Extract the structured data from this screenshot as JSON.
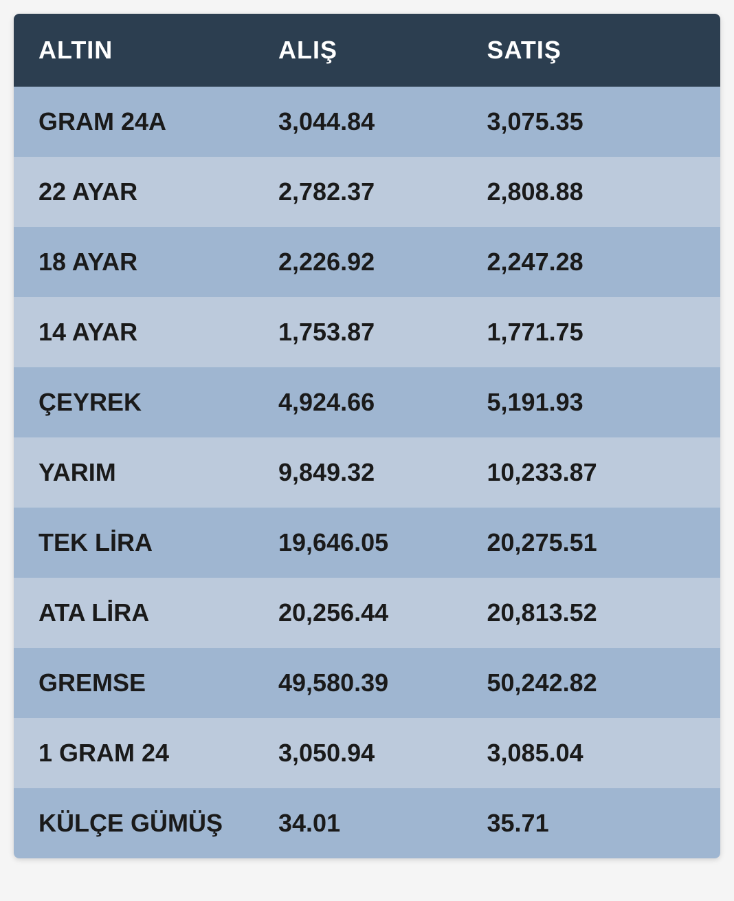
{
  "table": {
    "type": "table",
    "columns": [
      "ALTIN",
      "ALIŞ",
      "SATIŞ"
    ],
    "rows": [
      [
        "GRAM 24A",
        "3,044.84",
        "3,075.35"
      ],
      [
        "22 AYAR",
        "2,782.37",
        "2,808.88"
      ],
      [
        "18 AYAR",
        "2,226.92",
        "2,247.28"
      ],
      [
        "14 AYAR",
        "1,753.87",
        "1,771.75"
      ],
      [
        "ÇEYREK",
        "4,924.66",
        "5,191.93"
      ],
      [
        "YARIM",
        "9,849.32",
        "10,233.87"
      ],
      [
        "TEK LİRA",
        "19,646.05",
        "20,275.51"
      ],
      [
        "ATA LİRA",
        "20,256.44",
        "20,813.52"
      ],
      [
        "GREMSE",
        "49,580.39",
        "50,242.82"
      ],
      [
        "1 GRAM 24",
        "3,050.94",
        "3,085.04"
      ],
      [
        "KÜLÇE GÜMÜŞ",
        "34.01",
        "35.71"
      ]
    ],
    "header_bg_color": "#2c3e50",
    "header_text_color": "#ffffff",
    "row_odd_bg_color": "#9fb6d1",
    "row_even_bg_color": "#bccadc",
    "text_color": "#1a1a1a",
    "header_fontsize": 36,
    "cell_fontsize": 36,
    "header_fontweight": 700,
    "name_fontweight": 700,
    "value_fontweight": 600,
    "border_radius": 8,
    "column_flex": [
      1.15,
      1,
      1
    ],
    "column_align": [
      "left",
      "left",
      "left"
    ]
  }
}
